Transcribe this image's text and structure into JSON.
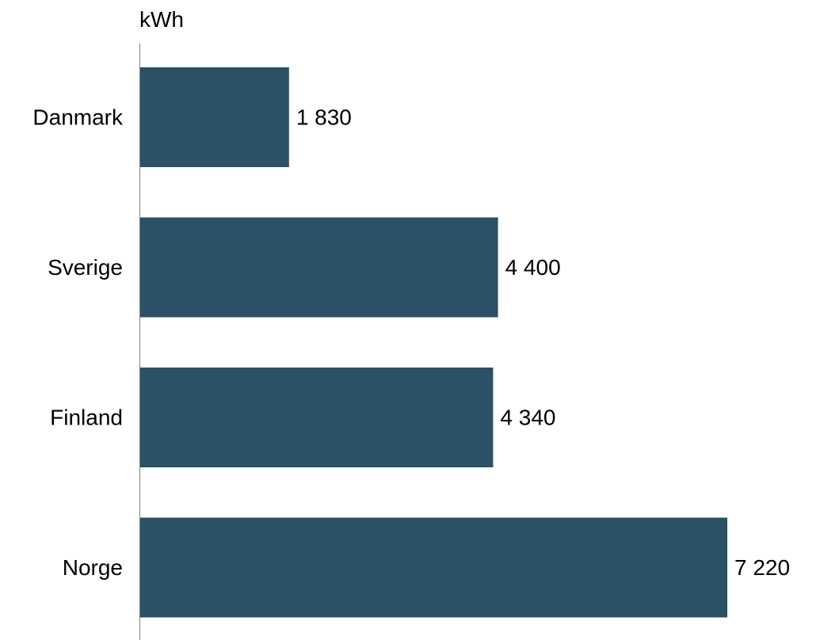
{
  "chart_data": {
    "type": "bar",
    "orientation": "horizontal",
    "unit_label": "kWh",
    "categories": [
      "Danmark",
      "Sverige",
      "Finland",
      "Norge"
    ],
    "values": [
      1830,
      4400,
      4340,
      7220
    ],
    "value_labels": [
      "1 830",
      "4 400",
      "4 340",
      "7 220"
    ],
    "xlim": [
      0,
      7220
    ],
    "grid": false,
    "legend": "none",
    "bar_color": "#2a5165",
    "axis_color": "#7f7f7f"
  }
}
